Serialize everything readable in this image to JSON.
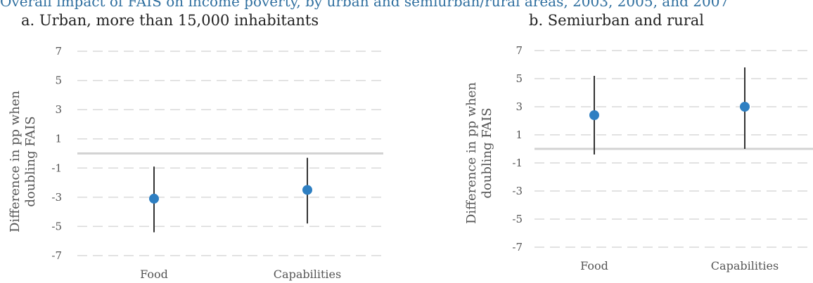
{
  "figure": {
    "title_fragment": "Overall impact of FAIS on income poverty, by urban and semiurban/rural areas, 2003, 2005, and 2007"
  },
  "colors": {
    "point": "#2e7fc2",
    "errorbar": "#333333",
    "grid": "#d9d9d9",
    "zero_line": "#d3d3d3",
    "title_fragment": "#2f6f9f"
  },
  "chart_data": [
    {
      "type": "scatter",
      "subtype": "point-with-error-bars",
      "title": "a. Urban, more than 15,000 inhabitants",
      "ylabel_lines": [
        "Difference in pp when",
        "doubling FAIS"
      ],
      "categories": [
        "Food",
        "Capabilities"
      ],
      "values": [
        -3.1,
        -2.5
      ],
      "ci_low": [
        -5.4,
        -4.8
      ],
      "ci_high": [
        -0.9,
        -0.3
      ],
      "ylim": [
        -7,
        7
      ],
      "yticks": [
        "7",
        "5",
        "3",
        "1",
        "-1",
        "-3",
        "-5",
        "-7"
      ],
      "grid": true,
      "zero_line": 0
    },
    {
      "type": "scatter",
      "subtype": "point-with-error-bars",
      "title": "b. Semiurban and rural",
      "ylabel_lines": [
        "Difference in pp when",
        "doubling FAIS"
      ],
      "categories": [
        "Food",
        "Capabilities"
      ],
      "values": [
        2.4,
        3.0
      ],
      "ci_low": [
        -0.4,
        0.0
      ],
      "ci_high": [
        5.2,
        5.8
      ],
      "ylim": [
        -7,
        7
      ],
      "yticks": [
        "7",
        "5",
        "3",
        "1",
        "-1",
        "-3",
        "-5",
        "-7"
      ],
      "grid": true,
      "zero_line": 0
    }
  ]
}
